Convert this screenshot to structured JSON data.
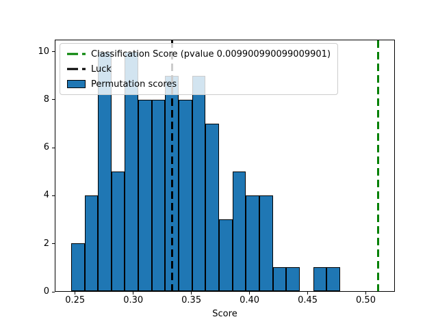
{
  "chart_data": {
    "type": "histogram",
    "title": "",
    "xlabel": "Score",
    "ylabel": "",
    "xlim": [
      0.2325,
      0.525
    ],
    "ylim": [
      0,
      10.5
    ],
    "grid": false,
    "xticks": [
      {
        "value": 0.25,
        "label": "0.25"
      },
      {
        "value": 0.3,
        "label": "0.30"
      },
      {
        "value": 0.35,
        "label": "0.35"
      },
      {
        "value": 0.4,
        "label": "0.40"
      },
      {
        "value": 0.45,
        "label": "0.45"
      },
      {
        "value": 0.5,
        "label": "0.50"
      }
    ],
    "yticks": [
      {
        "value": 0,
        "label": "0"
      },
      {
        "value": 2,
        "label": "2"
      },
      {
        "value": 4,
        "label": "4"
      },
      {
        "value": 6,
        "label": "6"
      },
      {
        "value": 8,
        "label": "8"
      },
      {
        "value": 10,
        "label": "10"
      }
    ],
    "bins": {
      "start": 0.246,
      "width": 0.011618,
      "counts": [
        2,
        4,
        10,
        5,
        10,
        8,
        8,
        9,
        8,
        9,
        7,
        3,
        5,
        4,
        4,
        1,
        1,
        0,
        1,
        1
      ]
    },
    "bar_color": "#1f77b4",
    "bar_edge_color": "#000000",
    "vlines": [
      {
        "name": "classification-score",
        "x": 0.511,
        "color": "#008000",
        "style": "dashed"
      },
      {
        "name": "luck",
        "x": 0.3333,
        "color": "#000000",
        "style": "dashed"
      }
    ],
    "legend": {
      "position": "upper left",
      "entries": [
        {
          "label": "Classification Score (pvalue 0.009900990099009901)",
          "marker": "dashed-line",
          "color": "#008000"
        },
        {
          "label": "Luck",
          "marker": "dashed-line",
          "color": "#000000"
        },
        {
          "label": "Permutation scores",
          "marker": "filled-box",
          "color": "#1f77b4"
        }
      ]
    }
  }
}
